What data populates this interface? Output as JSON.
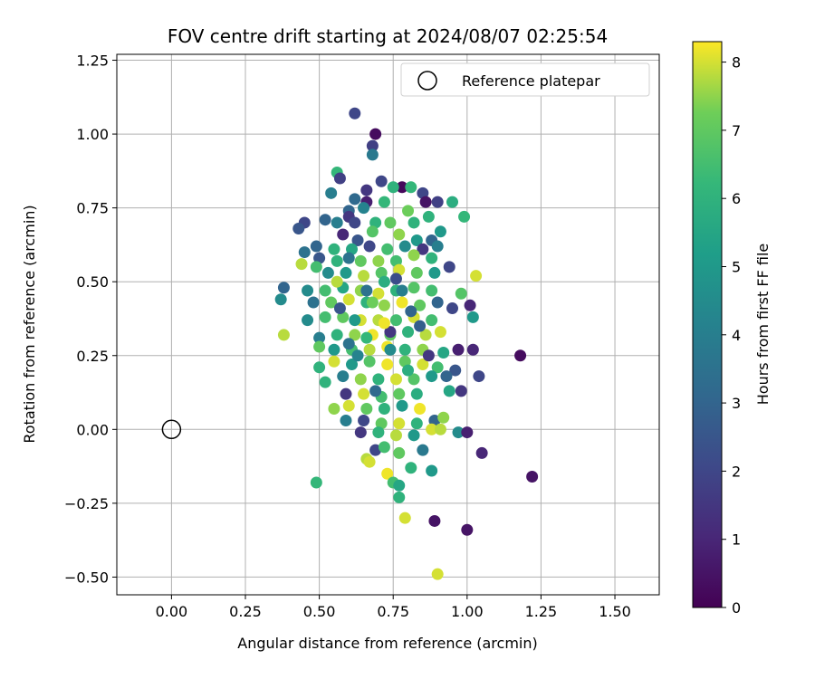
{
  "chart_data": {
    "type": "scatter",
    "title": "FOV centre drift starting at 2024/08/07 02:25:54",
    "xlabel": "Angular distance from reference (arcmin)",
    "ylabel": "Rotation from reference (arcmin)",
    "xlim": [
      -0.185,
      1.65
    ],
    "ylim": [
      -0.56,
      1.27
    ],
    "xticks": [
      0.0,
      0.25,
      0.5,
      0.75,
      1.0,
      1.25,
      1.5
    ],
    "xtick_labels": [
      "0.00",
      "0.25",
      "0.50",
      "0.75",
      "1.00",
      "1.25",
      "1.50"
    ],
    "yticks": [
      -0.5,
      -0.25,
      0.0,
      0.25,
      0.5,
      0.75,
      1.0,
      1.25
    ],
    "ytick_labels": [
      "−0.50",
      "−0.25",
      "0.00",
      "0.25",
      "0.50",
      "0.75",
      "1.00",
      "1.25"
    ],
    "grid": true,
    "legend": {
      "placement": "top-right",
      "entries": [
        {
          "label": "Reference platepar",
          "marker": "open-circle"
        }
      ]
    },
    "reference_point": {
      "x": 0.0,
      "y": 0.0
    },
    "colorbar": {
      "label": "Hours from first FF file",
      "range": [
        0,
        8.3
      ],
      "ticks": [
        0,
        1,
        2,
        3,
        4,
        5,
        6,
        7,
        8
      ],
      "tick_labels": [
        "0",
        "1",
        "2",
        "3",
        "4",
        "5",
        "6",
        "7",
        "8"
      ],
      "colormap": "viridis"
    },
    "points": [
      [
        0.62,
        1.07,
        2.0
      ],
      [
        0.69,
        1.0,
        0.3
      ],
      [
        0.68,
        0.96,
        1.8
      ],
      [
        0.68,
        0.93,
        3.8
      ],
      [
        0.56,
        0.87,
        6.2
      ],
      [
        0.57,
        0.85,
        1.8
      ],
      [
        0.78,
        0.82,
        0.2
      ],
      [
        0.81,
        0.82,
        6.2
      ],
      [
        0.75,
        0.82,
        6.0
      ],
      [
        0.71,
        0.84,
        2.0
      ],
      [
        0.66,
        0.81,
        1.5
      ],
      [
        0.85,
        0.8,
        2.0
      ],
      [
        0.9,
        0.77,
        1.8
      ],
      [
        0.62,
        0.78,
        3.2
      ],
      [
        0.66,
        0.77,
        0.8
      ],
      [
        0.54,
        0.8,
        4.0
      ],
      [
        0.95,
        0.77,
        5.8
      ],
      [
        0.72,
        0.77,
        6.2
      ],
      [
        0.86,
        0.77,
        0.5
      ],
      [
        0.65,
        0.75,
        4.2
      ],
      [
        0.6,
        0.74,
        3.0
      ],
      [
        0.6,
        0.72,
        1.5
      ],
      [
        0.52,
        0.71,
        3.0
      ],
      [
        0.45,
        0.7,
        2.0
      ],
      [
        0.43,
        0.68,
        2.5
      ],
      [
        0.56,
        0.7,
        4.0
      ],
      [
        0.62,
        0.7,
        2.0
      ],
      [
        0.69,
        0.7,
        6.0
      ],
      [
        0.68,
        0.67,
        6.8
      ],
      [
        0.74,
        0.7,
        7.0
      ],
      [
        0.8,
        0.74,
        7.2
      ],
      [
        0.82,
        0.7,
        6.0
      ],
      [
        0.87,
        0.72,
        6.0
      ],
      [
        0.91,
        0.67,
        5.0
      ],
      [
        0.99,
        0.72,
        6.2
      ],
      [
        0.58,
        0.66,
        1.0
      ],
      [
        0.63,
        0.64,
        2.5
      ],
      [
        0.77,
        0.66,
        7.5
      ],
      [
        0.83,
        0.64,
        5.0
      ],
      [
        0.88,
        0.64,
        3.0
      ],
      [
        0.9,
        0.62,
        4.0
      ],
      [
        0.49,
        0.62,
        3.0
      ],
      [
        0.55,
        0.61,
        6.0
      ],
      [
        0.61,
        0.61,
        5.5
      ],
      [
        0.67,
        0.62,
        2.0
      ],
      [
        0.73,
        0.61,
        6.5
      ],
      [
        0.79,
        0.62,
        4.5
      ],
      [
        0.85,
        0.61,
        1.5
      ],
      [
        0.45,
        0.6,
        3.5
      ],
      [
        0.5,
        0.58,
        2.5
      ],
      [
        0.56,
        0.57,
        6.0
      ],
      [
        0.64,
        0.57,
        7.0
      ],
      [
        0.7,
        0.57,
        7.5
      ],
      [
        0.76,
        0.57,
        6.5
      ],
      [
        0.82,
        0.59,
        7.5
      ],
      [
        0.88,
        0.58,
        6.0
      ],
      [
        0.94,
        0.55,
        2.0
      ],
      [
        0.44,
        0.56,
        7.8
      ],
      [
        0.49,
        0.55,
        6.5
      ],
      [
        0.53,
        0.53,
        4.5
      ],
      [
        0.59,
        0.53,
        5.0
      ],
      [
        0.65,
        0.52,
        7.8
      ],
      [
        0.71,
        0.53,
        6.8
      ],
      [
        0.77,
        0.54,
        8.0
      ],
      [
        0.83,
        0.53,
        7.0
      ],
      [
        0.89,
        0.53,
        5.0
      ],
      [
        1.03,
        0.52,
        8.0
      ],
      [
        0.38,
        0.48,
        3.0
      ],
      [
        0.46,
        0.47,
        4.5
      ],
      [
        0.52,
        0.47,
        6.5
      ],
      [
        0.58,
        0.48,
        5.5
      ],
      [
        0.64,
        0.47,
        7.5
      ],
      [
        0.7,
        0.46,
        8.0
      ],
      [
        0.76,
        0.47,
        6.0
      ],
      [
        0.82,
        0.48,
        6.8
      ],
      [
        0.88,
        0.47,
        6.5
      ],
      [
        0.37,
        0.44,
        4.5
      ],
      [
        0.48,
        0.43,
        3.5
      ],
      [
        0.54,
        0.43,
        7.0
      ],
      [
        0.6,
        0.44,
        8.0
      ],
      [
        0.66,
        0.43,
        6.0
      ],
      [
        0.72,
        0.42,
        7.5
      ],
      [
        0.78,
        0.43,
        8.2
      ],
      [
        0.84,
        0.42,
        7.0
      ],
      [
        0.9,
        0.43,
        3.0
      ],
      [
        0.98,
        0.46,
        6.8
      ],
      [
        1.01,
        0.42,
        1.0
      ],
      [
        0.46,
        0.37,
        4.5
      ],
      [
        0.52,
        0.38,
        6.5
      ],
      [
        0.58,
        0.38,
        7.0
      ],
      [
        0.64,
        0.37,
        8.0
      ],
      [
        0.7,
        0.37,
        7.8
      ],
      [
        0.76,
        0.37,
        6.5
      ],
      [
        0.82,
        0.38,
        8.0
      ],
      [
        0.88,
        0.37,
        6.5
      ],
      [
        0.95,
        0.41,
        2.0
      ],
      [
        1.02,
        0.38,
        5.0
      ],
      [
        0.38,
        0.32,
        7.8
      ],
      [
        0.5,
        0.31,
        4.0
      ],
      [
        0.56,
        0.32,
        6.0
      ],
      [
        0.62,
        0.32,
        7.5
      ],
      [
        0.68,
        0.32,
        8.2
      ],
      [
        0.74,
        0.32,
        7.0
      ],
      [
        0.8,
        0.33,
        6.0
      ],
      [
        0.86,
        0.32,
        7.8
      ],
      [
        0.91,
        0.33,
        8.0
      ],
      [
        0.5,
        0.28,
        7.0
      ],
      [
        0.55,
        0.27,
        5.0
      ],
      [
        0.61,
        0.27,
        6.5
      ],
      [
        0.67,
        0.27,
        7.8
      ],
      [
        0.73,
        0.28,
        8.2
      ],
      [
        0.79,
        0.27,
        6.0
      ],
      [
        0.85,
        0.27,
        7.5
      ],
      [
        0.92,
        0.26,
        5.5
      ],
      [
        0.97,
        0.27,
        0.8
      ],
      [
        1.02,
        0.27,
        1.0
      ],
      [
        1.18,
        0.25,
        0.3
      ],
      [
        0.55,
        0.23,
        8.0
      ],
      [
        0.61,
        0.22,
        5.0
      ],
      [
        0.67,
        0.23,
        6.8
      ],
      [
        0.73,
        0.22,
        8.2
      ],
      [
        0.79,
        0.23,
        7.0
      ],
      [
        0.85,
        0.22,
        8.0
      ],
      [
        0.9,
        0.21,
        6.5
      ],
      [
        0.96,
        0.2,
        2.5
      ],
      [
        1.04,
        0.18,
        2.0
      ],
      [
        0.5,
        0.21,
        6.0
      ],
      [
        0.52,
        0.16,
        6.0
      ],
      [
        0.58,
        0.18,
        4.0
      ],
      [
        0.64,
        0.17,
        7.5
      ],
      [
        0.7,
        0.17,
        6.0
      ],
      [
        0.76,
        0.17,
        8.0
      ],
      [
        0.82,
        0.17,
        6.8
      ],
      [
        0.88,
        0.18,
        5.0
      ],
      [
        0.93,
        0.18,
        3.0
      ],
      [
        0.59,
        0.12,
        1.5
      ],
      [
        0.65,
        0.12,
        8.0
      ],
      [
        0.71,
        0.11,
        6.5
      ],
      [
        0.77,
        0.12,
        7.0
      ],
      [
        0.83,
        0.12,
        5.8
      ],
      [
        0.94,
        0.13,
        5.5
      ],
      [
        0.98,
        0.13,
        1.5
      ],
      [
        0.6,
        0.08,
        8.0
      ],
      [
        0.66,
        0.07,
        7.0
      ],
      [
        0.72,
        0.07,
        6.0
      ],
      [
        0.78,
        0.08,
        5.0
      ],
      [
        0.84,
        0.07,
        8.2
      ],
      [
        0.55,
        0.07,
        7.5
      ],
      [
        0.59,
        0.03,
        4.0
      ],
      [
        0.65,
        0.03,
        2.0
      ],
      [
        0.71,
        0.02,
        7.0
      ],
      [
        0.77,
        0.02,
        8.0
      ],
      [
        0.83,
        0.02,
        6.0
      ],
      [
        0.89,
        0.03,
        3.0
      ],
      [
        0.92,
        0.04,
        7.5
      ],
      [
        0.64,
        -0.01,
        1.5
      ],
      [
        0.7,
        -0.01,
        6.0
      ],
      [
        0.76,
        -0.02,
        7.8
      ],
      [
        0.82,
        -0.02,
        5.0
      ],
      [
        0.88,
        0.0,
        8.0
      ],
      [
        0.91,
        0.0,
        7.8
      ],
      [
        0.97,
        -0.01,
        4.5
      ],
      [
        1.0,
        -0.01,
        0.8
      ],
      [
        0.69,
        -0.07,
        2.0
      ],
      [
        0.72,
        -0.06,
        6.5
      ],
      [
        0.77,
        -0.08,
        7.0
      ],
      [
        0.85,
        -0.07,
        3.8
      ],
      [
        0.66,
        -0.1,
        7.8
      ],
      [
        0.67,
        -0.11,
        8.0
      ],
      [
        0.81,
        -0.13,
        6.0
      ],
      [
        0.88,
        -0.14,
        5.0
      ],
      [
        0.73,
        -0.15,
        8.2
      ],
      [
        0.75,
        -0.18,
        6.5
      ],
      [
        0.49,
        -0.18,
        6.2
      ],
      [
        0.77,
        -0.19,
        5.5
      ],
      [
        0.77,
        -0.23,
        6.0
      ],
      [
        0.79,
        -0.3,
        8.0
      ],
      [
        0.89,
        -0.31,
        0.5
      ],
      [
        1.0,
        -0.34,
        0.5
      ],
      [
        1.05,
        -0.08,
        1.0
      ],
      [
        1.22,
        -0.16,
        0.5
      ],
      [
        0.9,
        -0.49,
        8.0
      ],
      [
        0.74,
        0.33,
        1.5
      ],
      [
        0.66,
        0.47,
        3.5
      ],
      [
        0.6,
        0.58,
        3.5
      ],
      [
        0.72,
        0.5,
        5.8
      ],
      [
        0.57,
        0.41,
        2.5
      ],
      [
        0.81,
        0.4,
        3.0
      ],
      [
        0.87,
        0.25,
        1.5
      ],
      [
        0.63,
        0.25,
        4.2
      ],
      [
        0.69,
        0.13,
        3.2
      ],
      [
        0.76,
        0.51,
        2.2
      ],
      [
        0.62,
        0.37,
        5.0
      ],
      [
        0.74,
        0.27,
        4.5
      ],
      [
        0.68,
        0.43,
        7.2
      ],
      [
        0.8,
        0.2,
        5.8
      ],
      [
        0.56,
        0.5,
        7.8
      ],
      [
        0.84,
        0.35,
        2.8
      ],
      [
        0.66,
        0.31,
        6.2
      ],
      [
        0.78,
        0.47,
        4.0
      ],
      [
        0.72,
        0.36,
        8.2
      ],
      [
        0.6,
        0.29,
        3.5
      ]
    ]
  }
}
